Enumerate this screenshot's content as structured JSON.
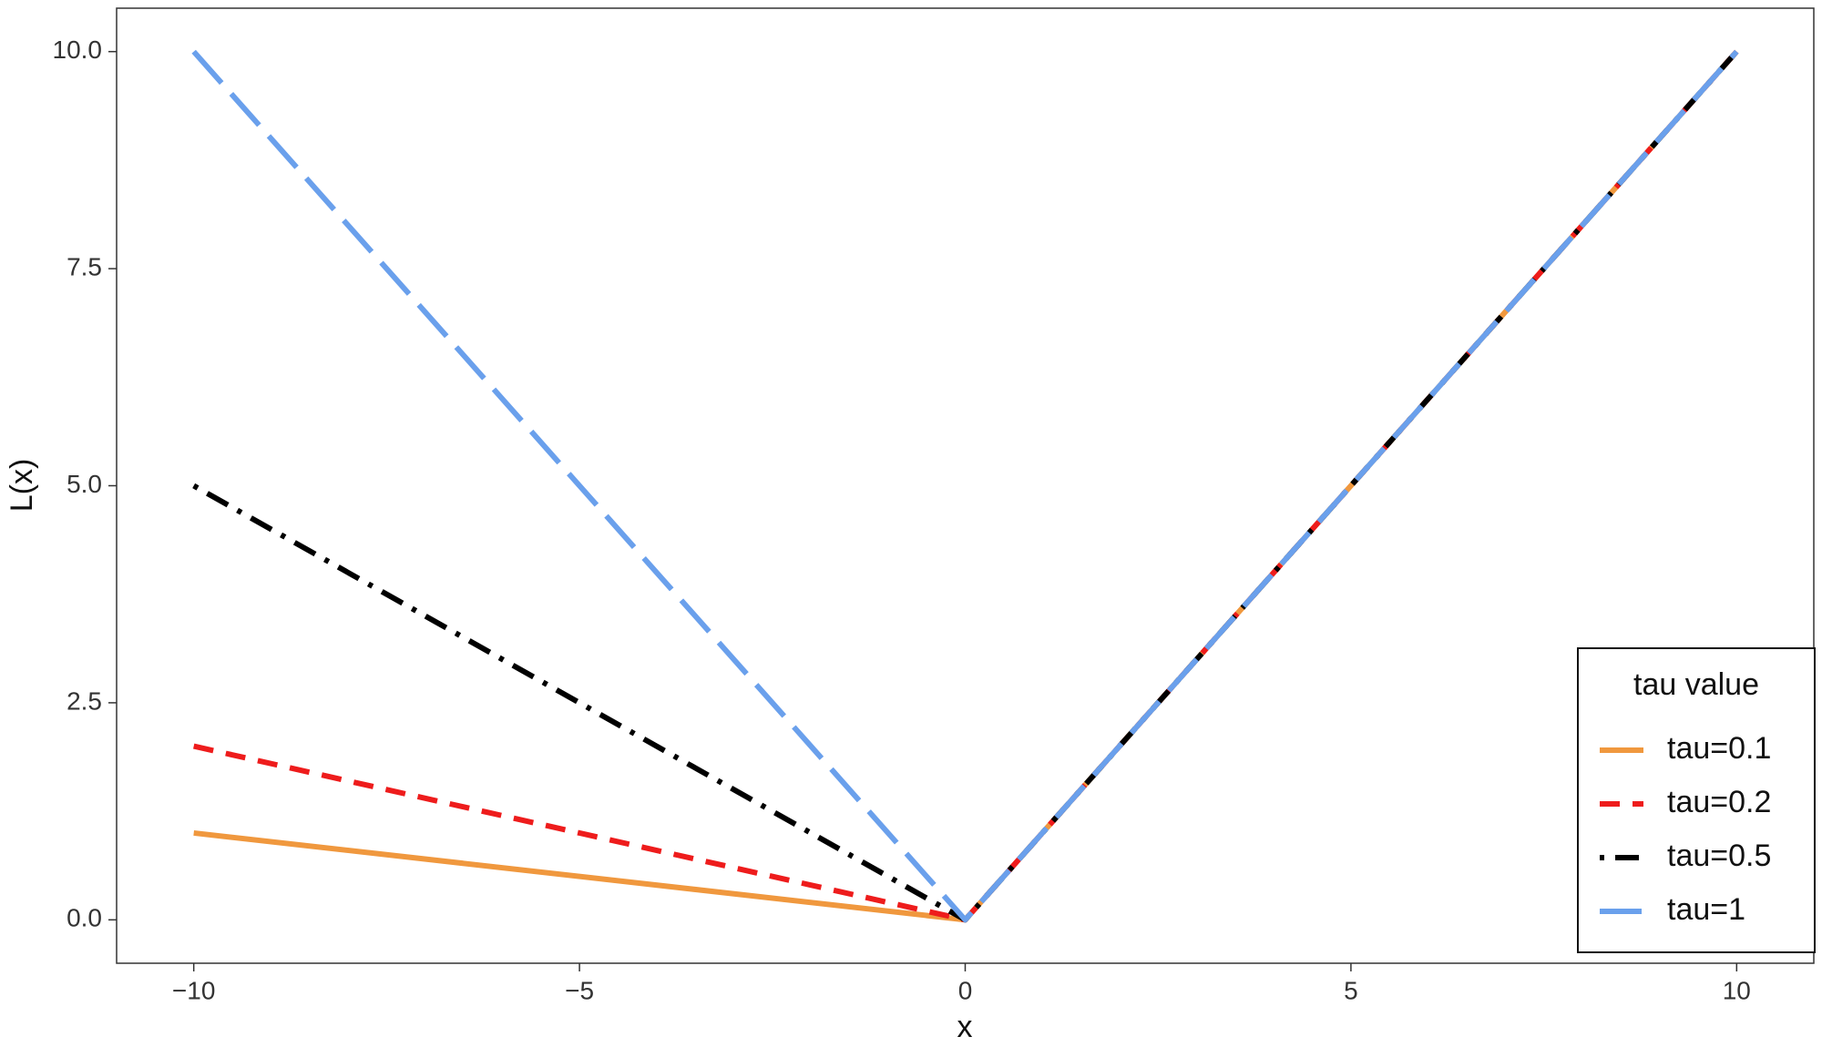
{
  "chart_data": {
    "type": "line",
    "xlabel": "x",
    "ylabel": "L(x)",
    "legend_title": "tau value",
    "legend_position": "bottom-right",
    "x": [
      -10,
      0,
      10
    ],
    "series": [
      {
        "name": "tau=0.1",
        "color": "#f0983e",
        "dash": "solid",
        "values": [
          1,
          0,
          10
        ]
      },
      {
        "name": "tau=0.2",
        "color": "#ee1c1c",
        "dash": "dashed",
        "values": [
          2,
          0,
          10
        ]
      },
      {
        "name": "tau=0.5",
        "color": "#000000",
        "dash": "dotdash",
        "values": [
          5,
          0,
          10
        ]
      },
      {
        "name": "tau=1",
        "color": "#6aa0ec",
        "dash": "longdash",
        "values": [
          10,
          0,
          10
        ]
      }
    ],
    "xlim": [
      -11,
      11
    ],
    "ylim": [
      -0.5,
      10.5
    ],
    "xticks": [
      {
        "value": -10,
        "label": "−10"
      },
      {
        "value": -5,
        "label": "−5"
      },
      0,
      5,
      10
    ],
    "yticks": [
      {
        "value": 0,
        "label": "0.0"
      },
      2.5,
      {
        "value": 5,
        "label": "5.0"
      },
      7.5,
      {
        "value": 10,
        "label": "10.0"
      }
    ],
    "grid": false
  }
}
